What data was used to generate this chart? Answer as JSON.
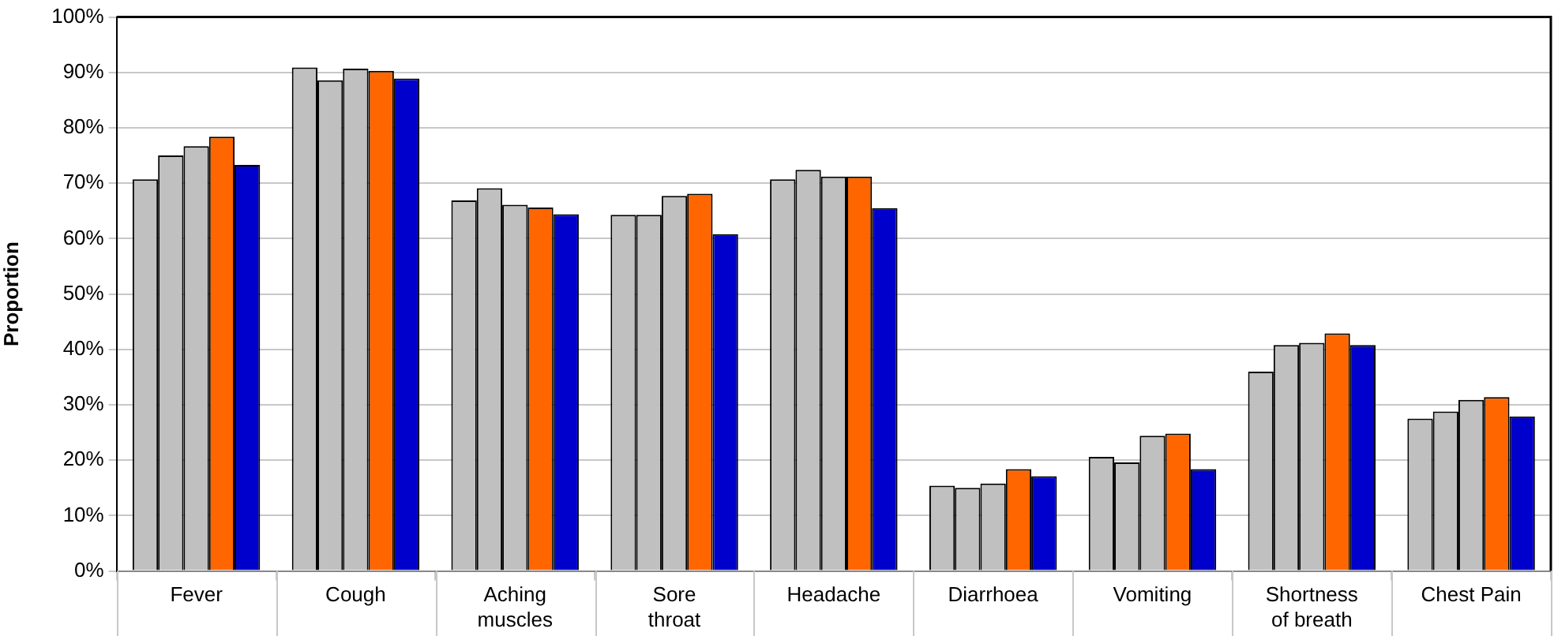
{
  "chart_data": {
    "type": "bar",
    "ylabel": "Proportion",
    "categories": [
      "Fever",
      "Cough",
      "Aching muscles",
      "Sore throat",
      "Headache",
      "Diarrhoea",
      "Vomiting",
      "Shortness of breath",
      "Chest Pain"
    ],
    "series": [
      {
        "color": "#c0c0c0",
        "values": [
          70.7,
          90.9,
          66.9,
          64.3,
          70.7,
          15.4,
          20.6,
          36.0,
          27.5
        ]
      },
      {
        "color": "#c0c0c0",
        "values": [
          75.0,
          88.6,
          69.1,
          64.3,
          72.4,
          15.0,
          19.6,
          40.8,
          28.8
        ]
      },
      {
        "color": "#c0c0c0",
        "values": [
          76.7,
          90.7,
          66.1,
          67.7,
          71.2,
          15.8,
          24.4,
          41.2,
          30.9
        ]
      },
      {
        "color": "#ff6600",
        "values": [
          78.4,
          90.3,
          65.6,
          68.1,
          71.2,
          18.4,
          24.8,
          42.9,
          31.4
        ]
      },
      {
        "color": "#0000cc",
        "values": [
          73.3,
          88.9,
          64.4,
          60.8,
          65.5,
          17.1,
          18.4,
          40.8,
          27.9
        ]
      }
    ],
    "ylim": [
      0,
      100
    ],
    "yticks": [
      {
        "value": 0,
        "label": "0%"
      },
      {
        "value": 10,
        "label": "10%"
      },
      {
        "value": 20,
        "label": "20%"
      },
      {
        "value": 30,
        "label": "30%"
      },
      {
        "value": 40,
        "label": "40%"
      },
      {
        "value": 50,
        "label": "50%"
      },
      {
        "value": 60,
        "label": "60%"
      },
      {
        "value": 70,
        "label": "70%"
      },
      {
        "value": 80,
        "label": "80%"
      },
      {
        "value": 90,
        "label": "90%"
      },
      {
        "value": 100,
        "label": "100%"
      }
    ],
    "grid": "y",
    "legend": false
  }
}
